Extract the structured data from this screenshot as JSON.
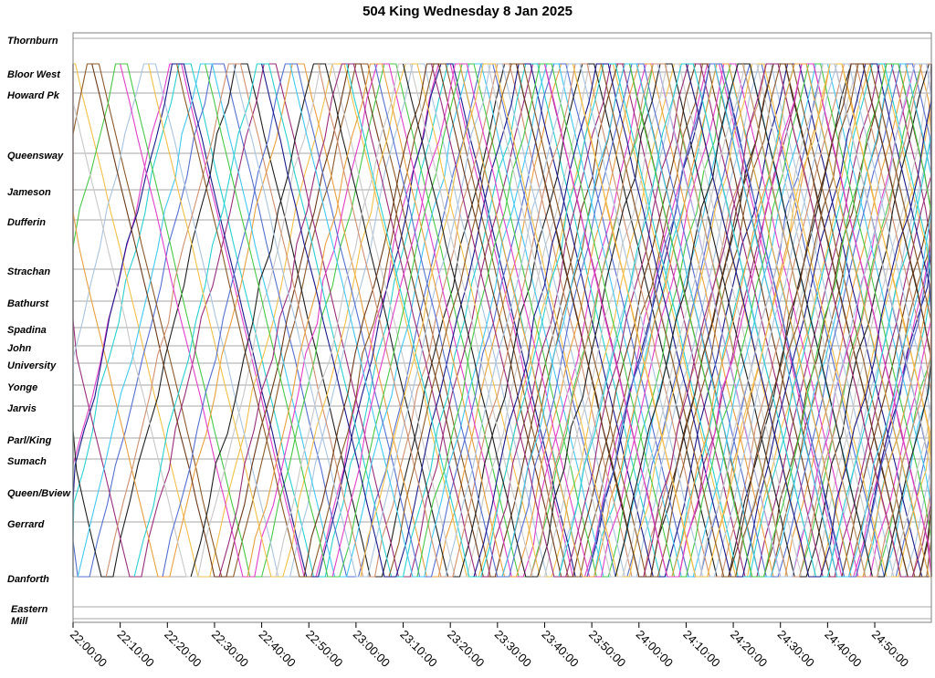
{
  "chart_data": {
    "type": "line",
    "title": "504 King Wednesday 8 Jan 2025",
    "xlabel": "",
    "ylabel": "",
    "x_range_minutes": [
      1320,
      1502
    ],
    "x_ticks": [
      "22:00:00",
      "22:10:00",
      "22:20:00",
      "22:30:00",
      "22:40:00",
      "22:50:00",
      "23:00:00",
      "23:10:00",
      "23:20:00",
      "23:30:00",
      "23:40:00",
      "23:50:00",
      "24:00:00",
      "24:10:00",
      "24:20:00",
      "24:30:00",
      "24:40:00",
      "24:50:00"
    ],
    "stops": [
      "Thornburn",
      "Bloor West",
      "Howard Pk",
      "Queensway",
      "Jameson",
      "Dufferin",
      "Strachan",
      "Bathurst",
      "Spadina",
      "John",
      "University",
      "Yonge",
      "Jarvis",
      "Parl/King",
      "Sumach",
      "Queen/Bview",
      "Gerrard",
      "Danforth",
      "Eastern",
      "Mill"
    ],
    "grid": true,
    "legend": "none",
    "colors": [
      "#e040c8",
      "#2bd0d0",
      "#f2c04a",
      "#5570d0",
      "#8c5a2a",
      "#202020",
      "#48c848",
      "#9a2d7a",
      "#a9c4e0",
      "#e8a040",
      "#1a1a8a",
      "#c8c8c8",
      "#44c8f0",
      "#6b3a1a",
      "#d09070"
    ],
    "series": [
      {
        "start": 1320,
        "dir": "down"
      },
      {
        "start": 1322,
        "dir": "down"
      },
      {
        "start": 1326,
        "dir": "up"
      },
      {
        "start": 1329,
        "dir": "down"
      },
      {
        "start": 1331,
        "dir": "up"
      },
      {
        "start": 1334,
        "dir": "down"
      },
      {
        "start": 1337,
        "dir": "up"
      },
      {
        "start": 1340,
        "dir": "down"
      },
      {
        "start": 1343,
        "dir": "up"
      },
      {
        "start": 1346,
        "dir": "down"
      },
      {
        "start": 1349,
        "dir": "up"
      },
      {
        "start": 1352,
        "dir": "down"
      },
      {
        "start": 1355,
        "dir": "up"
      },
      {
        "start": 1358,
        "dir": "down"
      },
      {
        "start": 1361,
        "dir": "up"
      },
      {
        "start": 1364,
        "dir": "down"
      },
      {
        "start": 1367,
        "dir": "up"
      },
      {
        "start": 1370,
        "dir": "down"
      },
      {
        "start": 1373,
        "dir": "up"
      },
      {
        "start": 1376,
        "dir": "down"
      },
      {
        "start": 1379,
        "dir": "up"
      },
      {
        "start": 1382,
        "dir": "down"
      },
      {
        "start": 1385,
        "dir": "up"
      },
      {
        "start": 1388,
        "dir": "down"
      },
      {
        "start": 1391,
        "dir": "up"
      },
      {
        "start": 1394,
        "dir": "down"
      },
      {
        "start": 1397,
        "dir": "up"
      },
      {
        "start": 1400,
        "dir": "down"
      },
      {
        "start": 1403,
        "dir": "up"
      },
      {
        "start": 1406,
        "dir": "down"
      },
      {
        "start": 1409,
        "dir": "up"
      },
      {
        "start": 1412,
        "dir": "down"
      },
      {
        "start": 1415,
        "dir": "up"
      },
      {
        "start": 1418,
        "dir": "down"
      },
      {
        "start": 1421,
        "dir": "up"
      },
      {
        "start": 1424,
        "dir": "down"
      },
      {
        "start": 1427,
        "dir": "up"
      },
      {
        "start": 1430,
        "dir": "down"
      },
      {
        "start": 1433,
        "dir": "up"
      },
      {
        "start": 1436,
        "dir": "down"
      },
      {
        "start": 1439,
        "dir": "up"
      },
      {
        "start": 1442,
        "dir": "down"
      },
      {
        "start": 1445,
        "dir": "up"
      },
      {
        "start": 1448,
        "dir": "down"
      },
      {
        "start": 1451,
        "dir": "up"
      },
      {
        "start": 1454,
        "dir": "down"
      },
      {
        "start": 1457,
        "dir": "up"
      },
      {
        "start": 1460,
        "dir": "down"
      },
      {
        "start": 1463,
        "dir": "up"
      },
      {
        "start": 1466,
        "dir": "down"
      },
      {
        "start": 1469,
        "dir": "up"
      },
      {
        "start": 1472,
        "dir": "down"
      },
      {
        "start": 1475,
        "dir": "up"
      },
      {
        "start": 1478,
        "dir": "down"
      },
      {
        "start": 1481,
        "dir": "up"
      },
      {
        "start": 1484,
        "dir": "down"
      },
      {
        "start": 1487,
        "dir": "up"
      },
      {
        "start": 1490,
        "dir": "down"
      },
      {
        "start": 1493,
        "dir": "up"
      },
      {
        "start": 1496,
        "dir": "down"
      }
    ]
  }
}
